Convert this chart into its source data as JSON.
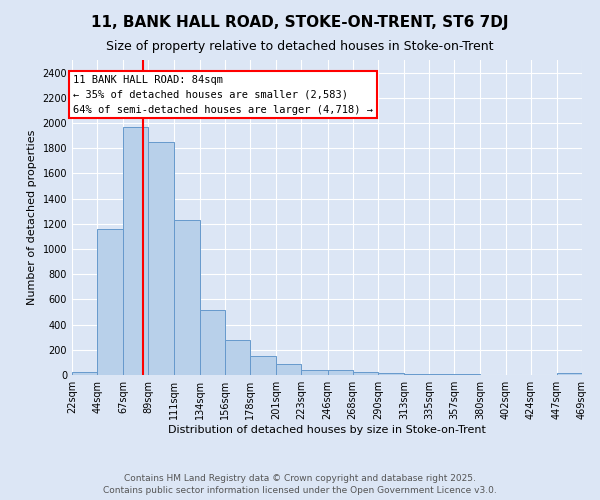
{
  "title": "11, BANK HALL ROAD, STOKE-ON-TRENT, ST6 7DJ",
  "subtitle": "Size of property relative to detached houses in Stoke-on-Trent",
  "xlabel": "Distribution of detached houses by size in Stoke-on-Trent",
  "ylabel": "Number of detached properties",
  "bar_color": "#b8d0ea",
  "bar_edge_color": "#6699cc",
  "background_color": "#dce6f5",
  "grid_color": "#ffffff",
  "red_line_x": 84,
  "annotation_text": "11 BANK HALL ROAD: 84sqm\n← 35% of detached houses are smaller (2,583)\n64% of semi-detached houses are larger (4,718) →",
  "footer_text": "Contains HM Land Registry data © Crown copyright and database right 2025.\nContains public sector information licensed under the Open Government Licence v3.0.",
  "bins": [
    22,
    44,
    67,
    89,
    111,
    134,
    156,
    178,
    201,
    223,
    246,
    268,
    290,
    313,
    335,
    357,
    380,
    402,
    424,
    447,
    469
  ],
  "counts": [
    25,
    1160,
    1970,
    1850,
    1230,
    515,
    275,
    150,
    90,
    40,
    40,
    20,
    15,
    10,
    5,
    5,
    3,
    3,
    2,
    15
  ],
  "ylim": [
    0,
    2500
  ],
  "yticks": [
    0,
    200,
    400,
    600,
    800,
    1000,
    1200,
    1400,
    1600,
    1800,
    2000,
    2200,
    2400
  ],
  "title_fontsize": 11,
  "subtitle_fontsize": 9,
  "xlabel_fontsize": 8,
  "ylabel_fontsize": 8,
  "tick_fontsize": 7,
  "footer_fontsize": 6.5,
  "annotation_fontsize": 7.5
}
